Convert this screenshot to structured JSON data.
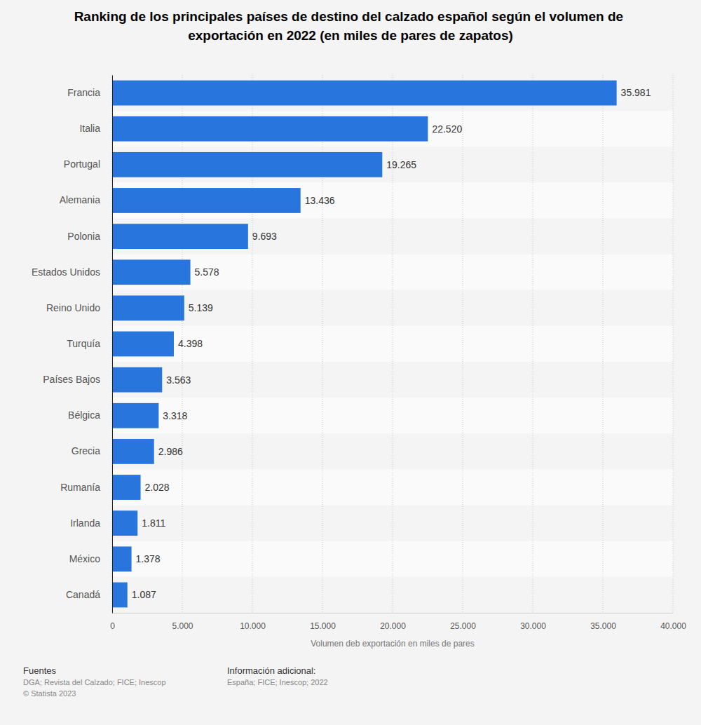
{
  "chart_data": {
    "type": "bar",
    "title": "Ranking de los principales países de destino del calzado español según el volumen de exportación en 2022 (en miles de pares de zapatos)",
    "orientation": "horizontal",
    "categories": [
      "Francia",
      "Italia",
      "Portugal",
      "Alemania",
      "Polonia",
      "Estados Unidos",
      "Reino Unido",
      "Turquía",
      "Países Bajos",
      "Bélgica",
      "Grecia",
      "Rumanía",
      "Irlanda",
      "México",
      "Canadá"
    ],
    "values": [
      35981,
      22520,
      19265,
      13436,
      9693,
      5578,
      5139,
      4398,
      3563,
      3318,
      2986,
      2028,
      1811,
      1378,
      1087
    ],
    "value_labels": [
      "35.981",
      "22.520",
      "19.265",
      "13.436",
      "9.693",
      "5.578",
      "5.139",
      "4.398",
      "3.563",
      "3.318",
      "2.986",
      "2.028",
      "1.811",
      "1.378",
      "1.087"
    ],
    "data_labels": true,
    "color": "#2876dd",
    "x_label": "Volumen deb exportación en miles de pares",
    "xlim": [
      0,
      40000
    ],
    "xticks": [
      0,
      {
        "value": 5000,
        "label": "5.000"
      },
      {
        "value": 10000,
        "label": "10.000"
      },
      {
        "value": 15000,
        "label": "15.000"
      },
      {
        "value": 20000,
        "label": "20.000"
      },
      {
        "value": 25000,
        "label": "25.000"
      },
      {
        "value": 30000,
        "label": "30.000"
      },
      {
        "value": 35000,
        "label": "35.000"
      },
      {
        "value": 40000,
        "label": "40.000"
      }
    ],
    "grid": true,
    "annotations": [
      "Fuentes",
      "DGA; Revista del Calzado; FICE; Inescop",
      "© Statista 2023",
      "Información adicional:",
      "España; FICE; Inescop; 2022"
    ]
  }
}
